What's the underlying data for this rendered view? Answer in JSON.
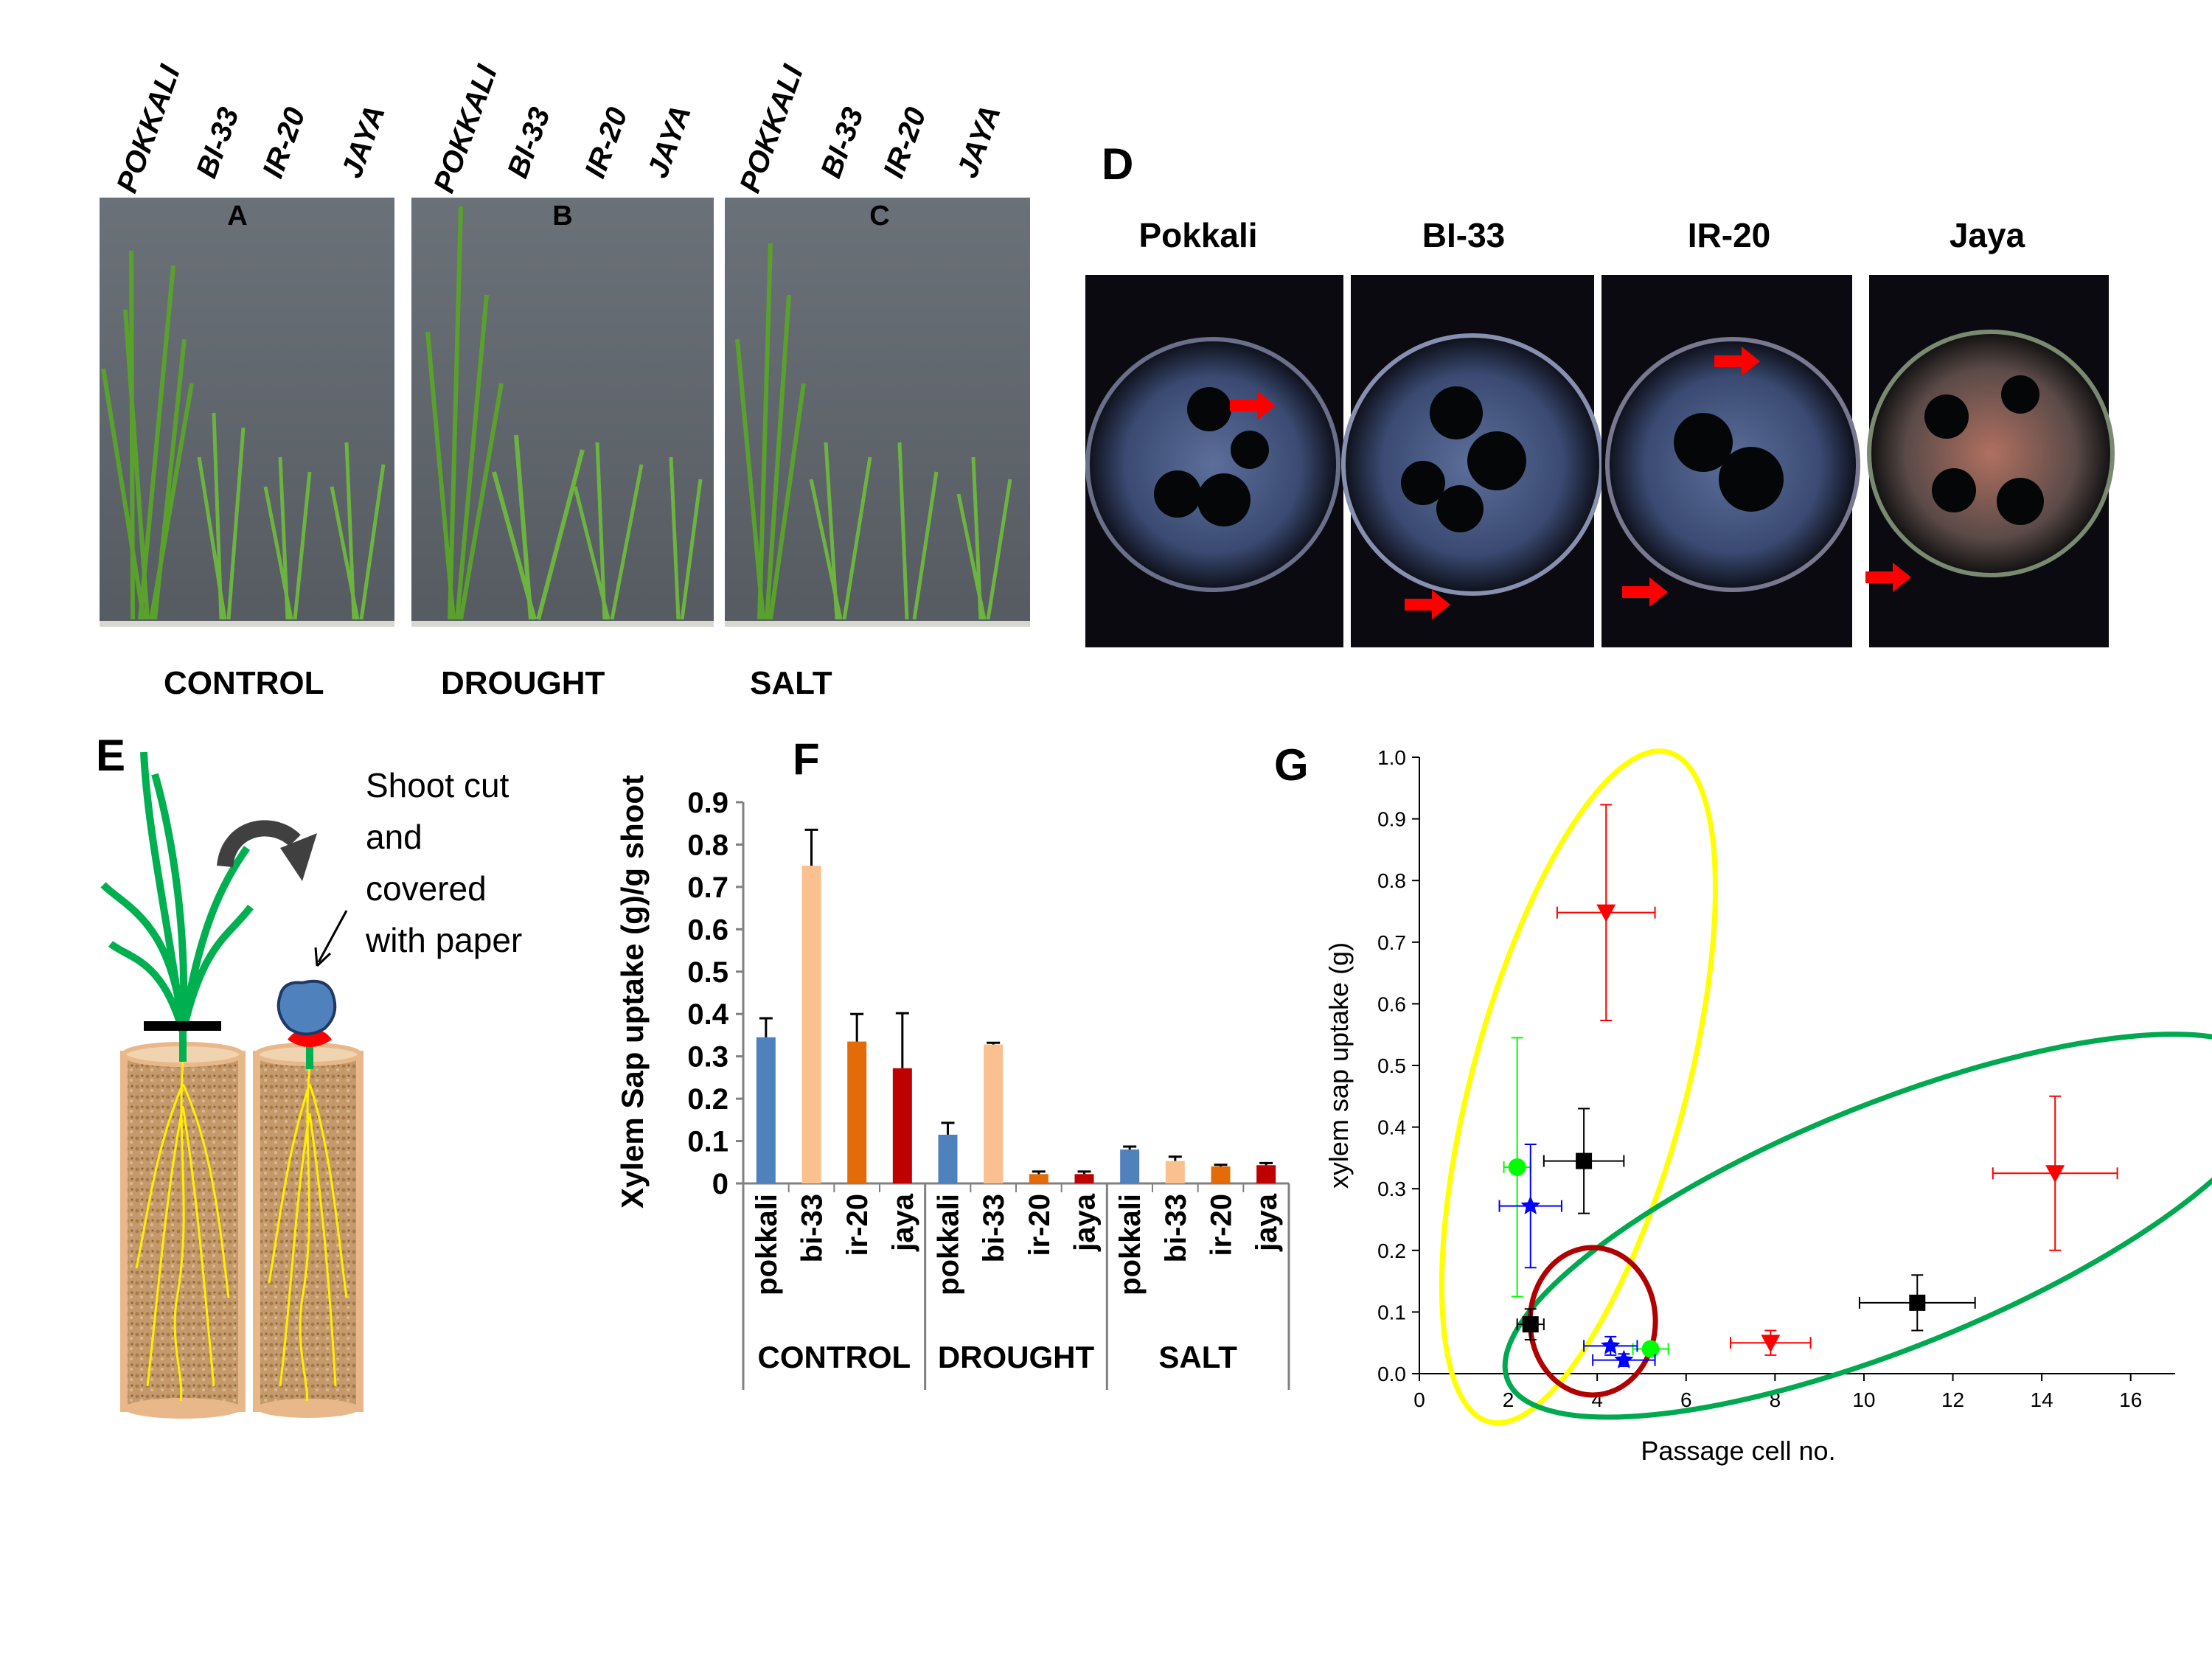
{
  "panels": {
    "A": "A",
    "B": "B",
    "C": "C",
    "D": "D",
    "E": "E",
    "F": "F",
    "G": "G"
  },
  "photo_varieties": [
    "POKKALI",
    "BI-33",
    "IR-20",
    "JAYA"
  ],
  "treatments": [
    "CONTROL",
    "DROUGHT",
    "SALT"
  ],
  "xylem_sections": [
    "Pokkali",
    "BI-33",
    "IR-20",
    "Jaya"
  ],
  "schematic": {
    "annotation_lines": [
      "Shoot cut",
      "and",
      "covered",
      "with paper"
    ]
  },
  "colors": {
    "pokkali": "#4f81bd",
    "bi33": "#fac090",
    "ir20": "#e36c09",
    "jaya": "#c00000",
    "arrow_red": "#ff0000",
    "ellipse_yellow": "#ffff00",
    "ellipse_green": "#00a84f",
    "circle_red": "#b00000"
  },
  "chart_data": [
    {
      "type": "bar",
      "panel": "F",
      "ylabel": "Xylem Sap uptake (g)/g shoot",
      "ylim": [
        0,
        0.9
      ],
      "yticks": [
        "0",
        "0.1",
        "0.2",
        "0.3",
        "0.4",
        "0.5",
        "0.6",
        "0.7",
        "0.8",
        "0.9"
      ],
      "groups": [
        "CONTROL",
        "DROUGHT",
        "SALT"
      ],
      "categories": [
        "pokkali",
        "bi-33",
        "ir-20",
        "jaya",
        "pokkali",
        "bi-33",
        "ir-20",
        "jaya",
        "pokkali",
        "bi-33",
        "ir-20",
        "jaya"
      ],
      "values": [
        0.345,
        0.75,
        0.335,
        0.272,
        0.115,
        0.328,
        0.022,
        0.022,
        0.08,
        0.053,
        0.04,
        0.043
      ],
      "errors": [
        0.045,
        0.085,
        0.065,
        0.13,
        0.028,
        0.004,
        0.006,
        0.006,
        0.007,
        0.01,
        0.004,
        0.005
      ],
      "bar_colors": [
        "#4f81bd",
        "#fac090",
        "#e36c09",
        "#c00000",
        "#4f81bd",
        "#fac090",
        "#e36c09",
        "#c00000",
        "#4f81bd",
        "#fac090",
        "#e36c09",
        "#c00000"
      ]
    },
    {
      "type": "scatter",
      "panel": "G",
      "xlabel": "Passage cell no.",
      "ylabel": "xylem sap uptake (g)",
      "xlim": [
        0,
        17
      ],
      "ylim": [
        0,
        1.0
      ],
      "xticks": [
        "0",
        "2",
        "4",
        "6",
        "8",
        "10",
        "12",
        "14",
        "16"
      ],
      "yticks": [
        "0.0",
        "0.1",
        "0.2",
        "0.3",
        "0.4",
        "0.5",
        "0.6",
        "0.7",
        "0.8",
        "0.9",
        "1.0"
      ],
      "series": [
        {
          "marker": "square",
          "color": "#000000",
          "points": [
            {
              "x": 3.7,
              "y": 0.345,
              "xerr": 0.9,
              "yerr": 0.085
            },
            {
              "x": 2.5,
              "y": 0.08,
              "xerr": 0.3,
              "yerr": 0.025
            },
            {
              "x": 11.2,
              "y": 0.115,
              "xerr": 1.3,
              "yerr": 0.045
            }
          ]
        },
        {
          "marker": "triangle-down",
          "color": "#ff0000",
          "points": [
            {
              "x": 4.2,
              "y": 0.748,
              "xerr": 1.1,
              "yerr": 0.175
            },
            {
              "x": 14.3,
              "y": 0.325,
              "xerr": 1.4,
              "yerr": 0.125
            },
            {
              "x": 7.9,
              "y": 0.05,
              "xerr": 0.9,
              "yerr": 0.02
            }
          ]
        },
        {
          "marker": "circle",
          "color": "#00ff00",
          "points": [
            {
              "x": 2.2,
              "y": 0.335,
              "xerr": 0.3,
              "yerr": 0.21
            },
            {
              "x": 5.2,
              "y": 0.04,
              "xerr": 0.4,
              "yerr": 0.01
            }
          ]
        },
        {
          "marker": "star",
          "color": "#0000ff",
          "points": [
            {
              "x": 2.5,
              "y": 0.272,
              "xerr": 0.7,
              "yerr": 0.1
            },
            {
              "x": 4.3,
              "y": 0.045,
              "xerr": 0.6,
              "yerr": 0.015
            },
            {
              "x": 4.6,
              "y": 0.022,
              "xerr": 0.7,
              "yerr": 0.01
            }
          ]
        }
      ]
    }
  ]
}
